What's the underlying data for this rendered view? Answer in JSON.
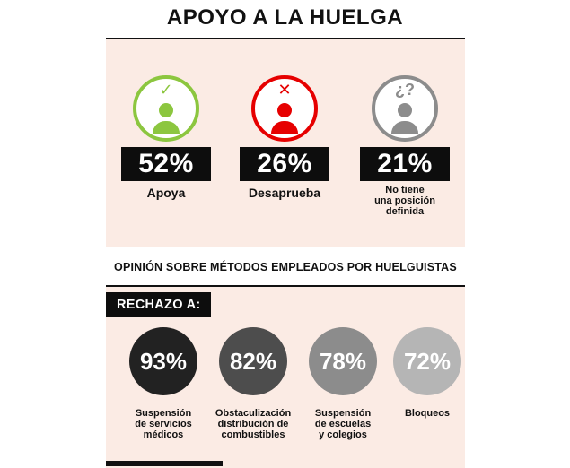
{
  "title": "APOYO A LA HUELGA",
  "support": {
    "items": [
      {
        "icon": "check-icon",
        "mark": "✓",
        "value": "52%",
        "label": "Apoya",
        "color": "#8cc63f"
      },
      {
        "icon": "cross-icon",
        "mark": "✕",
        "value": "26%",
        "label": "Desaprueba",
        "color": "#e60000"
      },
      {
        "icon": "question-icon",
        "mark": "¿?",
        "value": "21%",
        "label_lines": [
          "No tiene",
          "una posición",
          "definida"
        ],
        "color": "#8c8c8c"
      }
    ]
  },
  "methods": {
    "subtitle": "OPINIÓN SOBRE MÉTODOS EMPLEADOS POR HUELGUISTAS",
    "tag": "RECHAZO A:",
    "items": [
      {
        "value": "93%",
        "label_lines": [
          "Suspensión",
          "de servicios",
          "médicos"
        ],
        "color": "#222222"
      },
      {
        "value": "82%",
        "label_lines": [
          "Obstaculización",
          "distribución de",
          "combustibles"
        ],
        "color": "#4d4d4d"
      },
      {
        "value": "78%",
        "label_lines": [
          "Suspensión",
          "de escuelas",
          "y colegios"
        ],
        "color": "#8c8c8c"
      },
      {
        "value": "72%",
        "label_lines": [
          "Bloqueos"
        ],
        "color": "#b5b5b5"
      }
    ]
  },
  "chart_data": [
    {
      "type": "table",
      "title": "APOYO A LA HUELGA",
      "categories": [
        "Apoya",
        "Desaprueba",
        "No tiene una posición definida"
      ],
      "values": [
        52,
        26,
        21
      ]
    },
    {
      "type": "table",
      "title": "OPINIÓN SOBRE MÉTODOS EMPLEADOS POR HUELGUISTAS",
      "categories": [
        "Suspensión de servicios médicos",
        "Obstaculización distribución de combustibles",
        "Suspensión de escuelas y colegios",
        "Bloqueos"
      ],
      "values": [
        93,
        82,
        78,
        72
      ]
    }
  ]
}
